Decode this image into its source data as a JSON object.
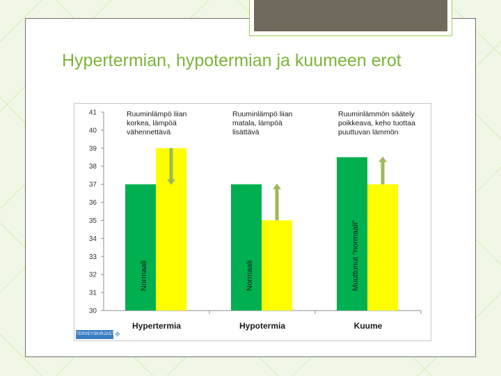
{
  "slide": {
    "title": "Hypertermian, hypotermian ja kuumeen erot"
  },
  "colors": {
    "green": "#00b050",
    "yellow": "#ffff00",
    "arrow": "#9bbb59",
    "title": "#7cb437"
  },
  "logo": {
    "text": "TERVEYSKIRJASTO"
  },
  "chart_data": {
    "type": "bar",
    "categories": [
      "Hypertermia",
      "Hypotermia",
      "Kuume"
    ],
    "series": [
      {
        "values": [
          37,
          37,
          38.5
        ],
        "color": "#00b050"
      },
      {
        "values": [
          39,
          35,
          37
        ],
        "color": "#ffff00"
      }
    ],
    "ylim": [
      30,
      41
    ],
    "yticks": [
      30,
      31,
      32,
      33,
      34,
      35,
      36,
      37,
      38,
      39,
      40,
      41
    ],
    "grid": false,
    "bar_labels": [
      "Normaali",
      "Normaali",
      "Muuttunut \"normaali\""
    ],
    "annotations": [
      [
        "Ruuminlämpö liian",
        "korkea, lämpöä",
        "vähennettävä"
      ],
      [
        "Ruuminlämpö liian",
        "matala, lämpöä",
        "lisättävä"
      ],
      [
        "Ruuminlämmön säätely",
        "poikkeava, keho tuottaa",
        "puuttuvan lämmön"
      ]
    ],
    "arrows": [
      {
        "from": 39,
        "to": 37,
        "direction": "down"
      },
      {
        "from": 35,
        "to": 37,
        "direction": "up"
      },
      {
        "from": 37,
        "to": 38.5,
        "direction": "up"
      }
    ]
  }
}
